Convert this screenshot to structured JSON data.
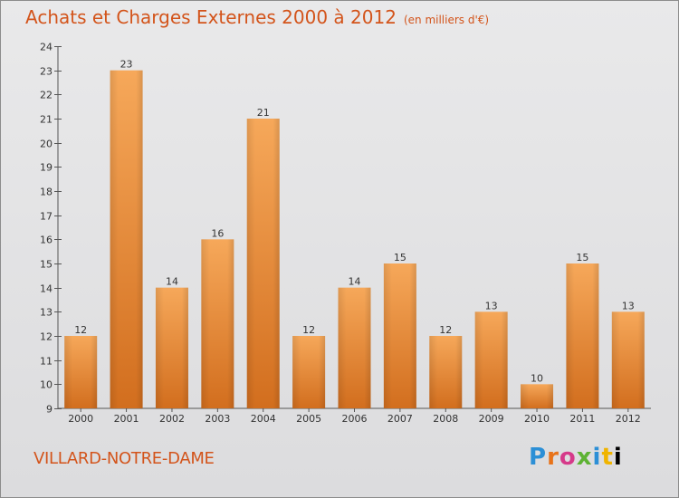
{
  "title": "Achats et Charges Externes 2000 à 2012",
  "subtitle": "(en milliers d'€)",
  "commune": "VILLARD-NOTRE-DAME",
  "logo_text": "Proxiti",
  "colors": {
    "title": "#d3541b",
    "bar_light": "#f5a455",
    "bar_dark": "#d3701f",
    "background": "#e3e3e5"
  },
  "chart_data": {
    "type": "bar",
    "title": "Achats et Charges Externes 2000 à 2012",
    "subtitle": "(en milliers d'€)",
    "categories": [
      "2000",
      "2001",
      "2002",
      "2003",
      "2004",
      "2005",
      "2006",
      "2007",
      "2008",
      "2009",
      "2010",
      "2011",
      "2012"
    ],
    "values": [
      12,
      23,
      14,
      16,
      21,
      12,
      14,
      15,
      12,
      13,
      10,
      15,
      13
    ],
    "ylim": [
      9,
      24
    ],
    "yticks": [
      9,
      10,
      11,
      12,
      13,
      14,
      15,
      16,
      17,
      18,
      19,
      20,
      21,
      22,
      23,
      24
    ],
    "xlabel": "",
    "ylabel": "",
    "grid": false,
    "legend": "none"
  }
}
